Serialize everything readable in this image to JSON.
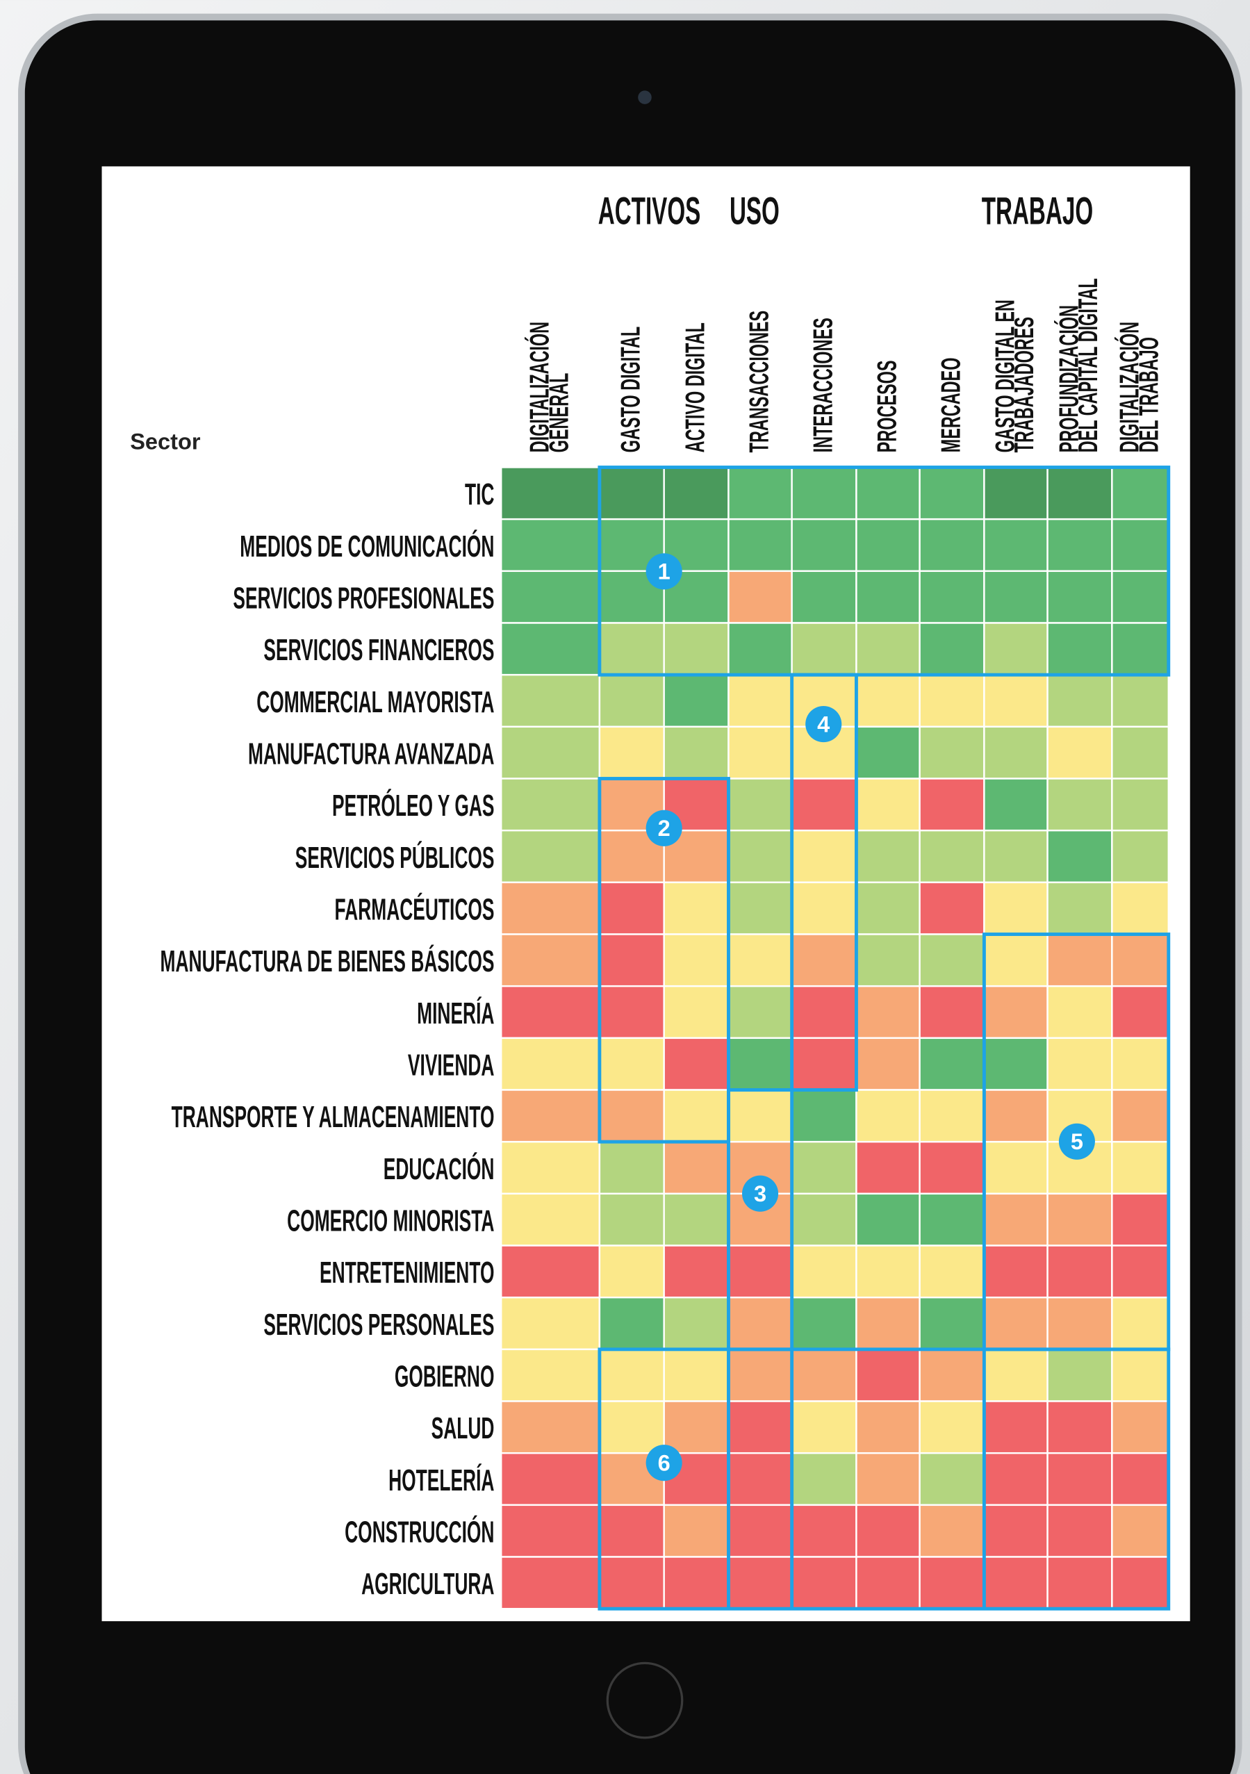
{
  "header": {
    "row_header": "Sector",
    "group_labels": [
      "ACTIVOS",
      "USO",
      "TRABAJO"
    ]
  },
  "columns": [
    [
      "DIGITALIZACIÓN",
      "GENERAL"
    ],
    [
      "GASTO DIGITAL"
    ],
    [
      "ACTIVO DIGITAL"
    ],
    [
      "TRANSACCIONES"
    ],
    [
      "INTERACCIONES"
    ],
    [
      "PROCESOS"
    ],
    [
      "MERCADEO"
    ],
    [
      "GASTO DIGITAL EN",
      "TRABAJADORES"
    ],
    [
      "PROFUNDIZACIÓN",
      "DEL CAPITAL DIGITAL"
    ],
    [
      "DIGITALIZACIÓN",
      "DEL TRABAJO"
    ]
  ],
  "rows": [
    {
      "label": "TIC",
      "cells": [
        "#4a9a5c",
        "#4a9a5c",
        "#4a9a5c",
        "#5db872",
        "#5db872",
        "#5db872",
        "#5db872",
        "#4a9a5c",
        "#4a9a5c",
        "#5db872"
      ]
    },
    {
      "label": "MEDIOS DE COMUNICACIÓN",
      "cells": [
        "#5db872",
        "#5db872",
        "#5db872",
        "#5db872",
        "#5db872",
        "#5db872",
        "#5db872",
        "#5db872",
        "#5db872",
        "#5db872"
      ]
    },
    {
      "label": "SERVICIOS PROFESIONALES",
      "cells": [
        "#5db872",
        "#5db872",
        "#5db872",
        "#f7a876",
        "#5db872",
        "#5db872",
        "#5db872",
        "#5db872",
        "#5db872",
        "#5db872"
      ]
    },
    {
      "label": "SERVICIOS FINANCIEROS",
      "cells": [
        "#5db872",
        "#b3d57f",
        "#b3d57f",
        "#5db872",
        "#b3d57f",
        "#b3d57f",
        "#5db872",
        "#b3d57f",
        "#5db872",
        "#5db872"
      ]
    },
    {
      "label": "COMMERCIAL MAYORISTA",
      "cells": [
        "#b3d57f",
        "#b3d57f",
        "#5db872",
        "#fbe88a",
        "#fbe88a",
        "#fbe88a",
        "#fbe88a",
        "#fbe88a",
        "#b3d57f",
        "#b3d57f"
      ]
    },
    {
      "label": "MANUFACTURA AVANZADA",
      "cells": [
        "#b3d57f",
        "#fbe88a",
        "#b3d57f",
        "#fbe88a",
        "#fbe88a",
        "#5db872",
        "#b3d57f",
        "#b3d57f",
        "#fbe88a",
        "#b3d57f"
      ]
    },
    {
      "label": "PETRÓLEO Y GAS",
      "cells": [
        "#b3d57f",
        "#f7a876",
        "#f06468",
        "#b3d57f",
        "#f06468",
        "#fbe88a",
        "#f06468",
        "#5db872",
        "#b3d57f",
        "#b3d57f"
      ]
    },
    {
      "label": "SERVICIOS PÚBLICOS",
      "cells": [
        "#b3d57f",
        "#f7a876",
        "#f7a876",
        "#b3d57f",
        "#fbe88a",
        "#b3d57f",
        "#b3d57f",
        "#b3d57f",
        "#5db872",
        "#b3d57f"
      ]
    },
    {
      "label": "FARMACÉUTICOS",
      "cells": [
        "#f7a876",
        "#f06468",
        "#fbe88a",
        "#b3d57f",
        "#fbe88a",
        "#b3d57f",
        "#f06468",
        "#fbe88a",
        "#b3d57f",
        "#fbe88a"
      ]
    },
    {
      "label": "MANUFACTURA DE BIENES BÁSICOS",
      "cells": [
        "#f7a876",
        "#f06468",
        "#fbe88a",
        "#fbe88a",
        "#f7a876",
        "#b3d57f",
        "#b3d57f",
        "#fbe88a",
        "#f7a876",
        "#f7a876"
      ]
    },
    {
      "label": "MINERÍA",
      "cells": [
        "#f06468",
        "#f06468",
        "#fbe88a",
        "#b3d57f",
        "#f06468",
        "#f7a876",
        "#f06468",
        "#f7a876",
        "#fbe88a",
        "#f06468"
      ]
    },
    {
      "label": "VIVIENDA",
      "cells": [
        "#fbe88a",
        "#fbe88a",
        "#f06468",
        "#5db872",
        "#f06468",
        "#f7a876",
        "#5db872",
        "#5db872",
        "#fbe88a",
        "#fbe88a"
      ]
    },
    {
      "label": "TRANSPORTE Y ALMACENAMIENTO",
      "cells": [
        "#f7a876",
        "#f7a876",
        "#fbe88a",
        "#fbe88a",
        "#5db872",
        "#fbe88a",
        "#fbe88a",
        "#f7a876",
        "#fbe88a",
        "#f7a876"
      ]
    },
    {
      "label": "EDUCACIÓN",
      "cells": [
        "#fbe88a",
        "#b3d57f",
        "#f7a876",
        "#f7a876",
        "#b3d57f",
        "#f06468",
        "#f06468",
        "#fbe88a",
        "#fbe88a",
        "#fbe88a"
      ]
    },
    {
      "label": "COMERCIO MINORISTA",
      "cells": [
        "#fbe88a",
        "#b3d57f",
        "#b3d57f",
        "#f7a876",
        "#b3d57f",
        "#5db872",
        "#5db872",
        "#f7a876",
        "#f7a876",
        "#f06468"
      ]
    },
    {
      "label": "ENTRETENIMIENTO",
      "cells": [
        "#f06468",
        "#fbe88a",
        "#f06468",
        "#f06468",
        "#fbe88a",
        "#fbe88a",
        "#fbe88a",
        "#f06468",
        "#f06468",
        "#f06468"
      ]
    },
    {
      "label": "SERVICIOS PERSONALES",
      "cells": [
        "#fbe88a",
        "#5db872",
        "#b3d57f",
        "#f7a876",
        "#5db872",
        "#f7a876",
        "#5db872",
        "#f7a876",
        "#f7a876",
        "#fbe88a"
      ]
    },
    {
      "label": "GOBIERNO",
      "cells": [
        "#fbe88a",
        "#fbe88a",
        "#fbe88a",
        "#f7a876",
        "#f7a876",
        "#f06468",
        "#f7a876",
        "#fbe88a",
        "#b3d57f",
        "#fbe88a"
      ]
    },
    {
      "label": "SALUD",
      "cells": [
        "#f7a876",
        "#fbe88a",
        "#f7a876",
        "#f06468",
        "#fbe88a",
        "#f7a876",
        "#fbe88a",
        "#f06468",
        "#f06468",
        "#f7a876"
      ]
    },
    {
      "label": "HOTELERÍA",
      "cells": [
        "#f06468",
        "#f7a876",
        "#f06468",
        "#f06468",
        "#b3d57f",
        "#f7a876",
        "#b3d57f",
        "#f06468",
        "#f06468",
        "#f06468"
      ]
    },
    {
      "label": "CONSTRUCCIÓN",
      "cells": [
        "#f06468",
        "#f06468",
        "#f7a876",
        "#f06468",
        "#f06468",
        "#f06468",
        "#f7a876",
        "#f06468",
        "#f06468",
        "#f7a876"
      ]
    },
    {
      "label": "AGRICULTURA",
      "cells": [
        "#f06468",
        "#f06468",
        "#f06468",
        "#f06468",
        "#f06468",
        "#f06468",
        "#f06468",
        "#f06468",
        "#f06468",
        "#f06468"
      ]
    }
  ],
  "markers": [
    "1",
    "2",
    "3",
    "4",
    "5",
    "6"
  ]
}
